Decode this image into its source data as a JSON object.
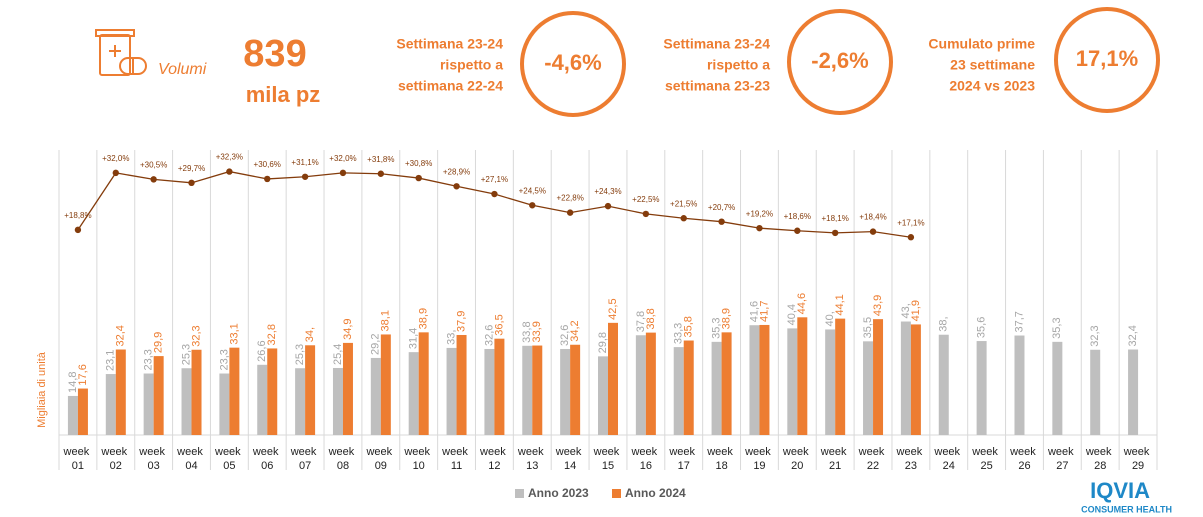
{
  "header": {
    "icon_label": "Volumi",
    "total": "839",
    "unit": "mila pz",
    "kpis": [
      {
        "lines": [
          "Settimana 23-24",
          "rispetto a",
          "settimana 22-24"
        ],
        "value": "-4,6%"
      },
      {
        "lines": [
          "Settimana 23-24",
          "rispetto a",
          "settimana 23-23"
        ],
        "value": "-2,6%"
      },
      {
        "lines": [
          "Cumulato prime",
          "23 settimane",
          "2024 vs 2023"
        ],
        "value": "17,1%"
      }
    ]
  },
  "logo": {
    "name": "IQVIA",
    "sub": "CONSUMER HEALTH"
  },
  "chart_data": {
    "type": "bar",
    "y_label": "Migliaia di unità",
    "categories": [
      "week 01",
      "week 02",
      "week 03",
      "week 04",
      "week 05",
      "week 06",
      "week 07",
      "week 08",
      "week 09",
      "week 10",
      "week 11",
      "week 12",
      "week 13",
      "week 14",
      "week 15",
      "week 16",
      "week 17",
      "week 18",
      "week 19",
      "week 20",
      "week 21",
      "week 22",
      "week 23",
      "week 24",
      "week 25",
      "week 26",
      "week 27",
      "week 28",
      "week 29"
    ],
    "ylim": [
      0,
      108
    ],
    "y2lim": [
      -28.7,
      37.3
    ],
    "grid": true,
    "legend": "bottom",
    "series": [
      {
        "name": "Anno 2023",
        "color": "#bfbfbf",
        "label_color": "#a6a6a6",
        "values": [
          14.8,
          23.1,
          23.3,
          25.3,
          23.3,
          26.6,
          25.3,
          25.4,
          29.2,
          31.4,
          33,
          32.6,
          33.8,
          32.6,
          29.8,
          37.8,
          33.3,
          35.3,
          41.6,
          40.4,
          40,
          35.5,
          43,
          38,
          35.6,
          37.7,
          35.3,
          32.3,
          32.4
        ],
        "value_labels": [
          "14,8",
          "23,1",
          "23,3",
          "25,3",
          "23,3",
          "26,6",
          "25,3",
          "25,4",
          "29,2",
          "31,4",
          "33,",
          "32,6",
          "33,8",
          "32,6",
          "29,8",
          "37,8",
          "33,3",
          "35,3",
          "41,6",
          "40,4",
          "40,",
          "35,5",
          "43,",
          "38,",
          "35,6",
          "37,7",
          "35,3",
          "32,3",
          "32,4"
        ]
      },
      {
        "name": "Anno 2024",
        "color": "#ed7d31",
        "label_color": "#ed7d31",
        "values": [
          17.6,
          32.4,
          29.9,
          32.3,
          33.1,
          32.8,
          34,
          34.9,
          38.1,
          38.9,
          37.9,
          36.5,
          33.9,
          34.2,
          42.5,
          38.8,
          35.8,
          38.9,
          41.7,
          44.6,
          44.1,
          43.9,
          41.9,
          null,
          null,
          null,
          null,
          null,
          null
        ],
        "value_labels": [
          "17,6",
          "32,4",
          "29,9",
          "32,3",
          "33,1",
          "32,8",
          "34,",
          "34,9",
          "38,1",
          "38,9",
          "37,9",
          "36,5",
          "33,9",
          "34,2",
          "42,5",
          "38,8",
          "35,8",
          "38,9",
          "41,7",
          "44,6",
          "44,1",
          "43,9",
          "41,9",
          null,
          null,
          null,
          null,
          null,
          null
        ]
      },
      {
        "type": "line",
        "axis": "y2",
        "color": "#843c0c",
        "values": [
          18.8,
          32.0,
          30.5,
          29.7,
          32.3,
          30.6,
          31.1,
          32.0,
          31.8,
          30.8,
          28.9,
          27.1,
          24.5,
          22.8,
          24.3,
          22.5,
          21.5,
          20.7,
          19.2,
          18.6,
          18.1,
          18.4,
          17.1,
          null,
          null,
          null,
          null,
          null,
          null
        ],
        "value_labels": [
          "+18,8%",
          "+32,0%",
          "+30,5%",
          "+29,7%",
          "+32,3%",
          "+30,6%",
          "+31,1%",
          "+32,0%",
          "+31,8%",
          "+30,8%",
          "+28,9%",
          "+27,1%",
          "+24,5%",
          "+22,8%",
          "+24,3%",
          "+22,5%",
          "+21,5%",
          "+20,7%",
          "+19,2%",
          "+18,6%",
          "+18,1%",
          "+18,4%",
          "+17,1%",
          null,
          null,
          null,
          null,
          null,
          null
        ]
      }
    ]
  }
}
